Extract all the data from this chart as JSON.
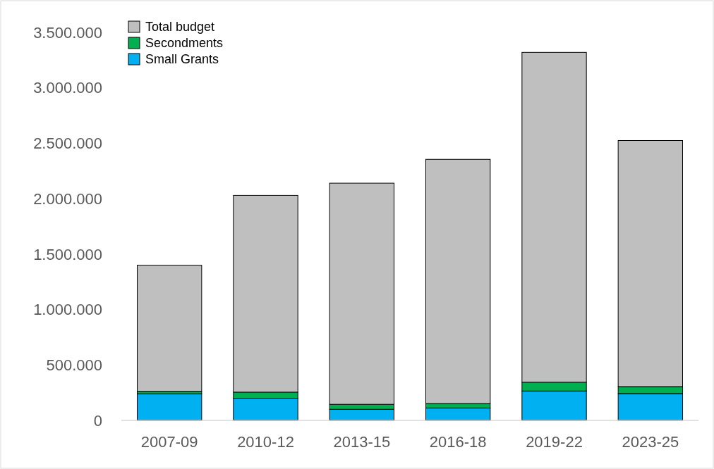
{
  "chart_data": {
    "type": "bar",
    "stacked": true,
    "categories": [
      "2007-09",
      "2010-12",
      "2013-15",
      "2016-18",
      "2019-22",
      "2023-25"
    ],
    "series": [
      {
        "name": "Small Grants",
        "color": "#00b0f0",
        "values": [
          240000,
          200000,
          100000,
          112000,
          265000,
          242000
        ]
      },
      {
        "name": "Secondments",
        "color": "#00b050",
        "values": [
          22000,
          55000,
          45000,
          40000,
          80000,
          63000
        ]
      },
      {
        "name": "Total budget",
        "color": "#bfbfbf",
        "values": [
          1138000,
          1775000,
          1995000,
          2203000,
          2975000,
          2220000
        ]
      }
    ],
    "ylim": [
      0,
      3500000
    ],
    "yticks": [
      {
        "value": 0,
        "label": "0"
      },
      {
        "value": 500000,
        "label": "500.000"
      },
      {
        "value": 1000000,
        "label": "1.000.000"
      },
      {
        "value": 1500000,
        "label": "1.500.000"
      },
      {
        "value": 2000000,
        "label": "2.000.000"
      },
      {
        "value": 2500000,
        "label": "2.500.000"
      },
      {
        "value": 3000000,
        "label": "3.000.000"
      },
      {
        "value": 3500000,
        "label": "3.500.000"
      }
    ],
    "grid": false,
    "legend": "top left"
  }
}
